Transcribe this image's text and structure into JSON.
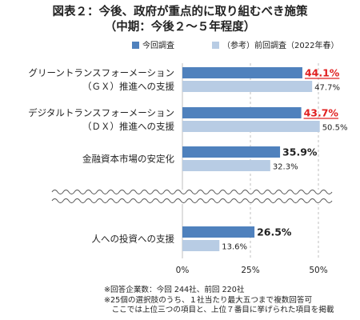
{
  "title_lines": [
    "図表２：今後、政府が重点的に取り組むべき施策",
    "（中期：今後２～５年程度）"
  ],
  "chart_data": {
    "type": "bar",
    "orientation": "horizontal",
    "categories": [
      [
        "グリーントランスフォーメーション",
        "（ＧＸ）推進への支援"
      ],
      [
        "デジタルトランスフォーメーション",
        "（ＤＸ）推進への支援"
      ],
      [
        "金融資本市場の安定化"
      ],
      [
        "人への投資への支援"
      ]
    ],
    "series": [
      {
        "name": "今回調査",
        "values": [
          44.1,
          43.7,
          35.9,
          26.5
        ],
        "value_labels": [
          "44.1%",
          "43.7%",
          "35.9%",
          "26.5%"
        ],
        "color": "#4f81bd"
      },
      {
        "name": "（参考）前回調査（2022年春）",
        "values": [
          47.7,
          50.5,
          32.3,
          13.6
        ],
        "value_labels": [
          "47.7%",
          "50.5%",
          "32.3%",
          "13.6%"
        ],
        "color": "#b8cce4"
      }
    ],
    "highlight": {
      "series": 0,
      "indices": [
        0,
        1
      ],
      "color": "#e02020"
    },
    "xlim": [
      0,
      50
    ],
    "ticks": [
      0,
      25,
      50
    ],
    "tick_labels": [
      "0%",
      "25%",
      "50%"
    ],
    "axis_break_after_index": 2,
    "legend_position": "top"
  },
  "footnotes": [
    "※回答企業数：今回 244社、前回 220社",
    "※25個の選択肢のうち、１社当たり最大五つまで複数回答可",
    "　ここでは上位三つの項目と、上位７番目に挙げられた項目を掲載"
  ]
}
